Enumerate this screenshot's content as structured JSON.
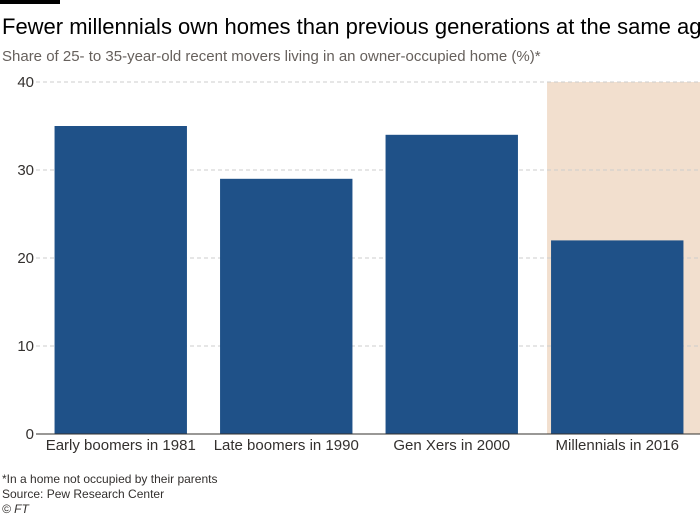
{
  "title": "Fewer millennials own homes than previous generations at the same age",
  "subtitle": "Share of 25- to 35-year-old recent movers living in an owner-occupied home (%)*",
  "footnote": "*In a home not occupied by their parents",
  "source": "Source: Pew Research Center",
  "credit": "© FT",
  "colors": {
    "bar": "#1f5188",
    "highlight": "#f2dfce",
    "grid": "#cccccc",
    "axis": "#33302e",
    "text": "#33302e"
  },
  "chart_data": {
    "type": "bar",
    "categories": [
      "Early boomers in 1981",
      "Late boomers in 1990",
      "Gen Xers in 2000",
      "Millennials in 2016"
    ],
    "values": [
      35,
      29,
      34,
      22
    ],
    "ylim": [
      0,
      40
    ],
    "yticks": [
      "0",
      "10",
      "20",
      "30",
      "40"
    ],
    "xlabel": "",
    "ylabel": "",
    "grid": true,
    "highlighted_category": "Millennials in 2016"
  }
}
